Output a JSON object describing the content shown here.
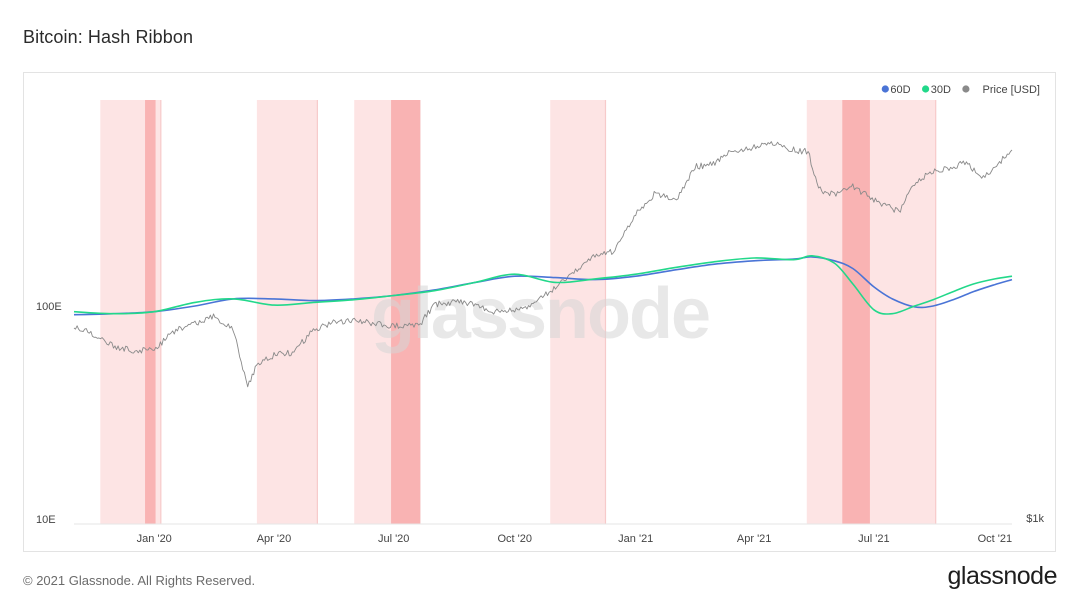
{
  "header": {
    "title": "Bitcoin: Hash Ribbon"
  },
  "footer": {
    "copyright": "© 2021 Glassnode. All Rights Reserved.",
    "brand": "glassnode"
  },
  "watermark": "glassnode",
  "colors": {
    "sixty_day": "#4a74d6",
    "thirty_day": "#22d88a",
    "price": "#8a8a8a",
    "capitulation_band": "#fde4e4",
    "capitulation_peak": "#f9b3b3"
  },
  "chart_data": {
    "type": "line",
    "title": "Bitcoin: Hash Ribbon",
    "x_range": [
      "2019-11-01",
      "2021-10-14"
    ],
    "x_ticks": [
      {
        "date": "2020-01-01",
        "label": "Jan '20"
      },
      {
        "date": "2020-04-01",
        "label": "Apr '20"
      },
      {
        "date": "2020-07-01",
        "label": "Jul '20"
      },
      {
        "date": "2020-10-01",
        "label": "Oct '20"
      },
      {
        "date": "2021-01-01",
        "label": "Jan '21"
      },
      {
        "date": "2021-04-01",
        "label": "Apr '21"
      },
      {
        "date": "2021-07-01",
        "label": "Jul '21"
      },
      {
        "date": "2021-10-01",
        "label": "Oct '21"
      }
    ],
    "y_left": {
      "scale": "log",
      "range": [
        "10E",
        "300E"
      ],
      "ticks": [
        {
          "value": 100,
          "label": "100E"
        },
        {
          "value": 10,
          "label": "10E"
        }
      ]
    },
    "y_right": {
      "scale": "log",
      "ticks": [
        {
          "value": 1000,
          "label": "$1k"
        }
      ]
    },
    "legend": {
      "position": "top-right",
      "entries": [
        {
          "name": "60D",
          "color": "#4a74d6"
        },
        {
          "name": "30D",
          "color": "#22d88a"
        },
        {
          "name": "Price [USD]",
          "color": "#8a8a8a"
        }
      ]
    },
    "capitulation_bands": [
      {
        "start": "2019-11-21",
        "end": "2020-01-06",
        "peak_start": "2019-12-25",
        "peak_end": "2020-01-02"
      },
      {
        "start": "2020-03-19",
        "end": "2020-05-04"
      },
      {
        "start": "2020-06-01",
        "end": "2020-07-21",
        "peak_start": "2020-06-29",
        "peak_end": "2020-07-21"
      },
      {
        "start": "2020-10-28",
        "end": "2020-12-09"
      },
      {
        "start": "2021-05-11",
        "end": "2021-08-17",
        "peak_start": "2021-06-07",
        "peak_end": "2021-06-28"
      }
    ],
    "series": [
      {
        "name": "60D",
        "axis": "left",
        "points": [
          [
            "2019-11-01",
            91
          ],
          [
            "2019-12-01",
            92
          ],
          [
            "2020-01-01",
            94
          ],
          [
            "2020-02-01",
            100
          ],
          [
            "2020-03-01",
            108
          ],
          [
            "2020-04-01",
            108
          ],
          [
            "2020-05-01",
            106
          ],
          [
            "2020-06-01",
            108
          ],
          [
            "2020-07-01",
            112
          ],
          [
            "2020-08-01",
            119
          ],
          [
            "2020-09-01",
            129
          ],
          [
            "2020-10-01",
            138
          ],
          [
            "2020-11-01",
            136
          ],
          [
            "2020-12-01",
            133
          ],
          [
            "2021-01-01",
            138
          ],
          [
            "2021-02-01",
            148
          ],
          [
            "2021-03-01",
            157
          ],
          [
            "2021-04-01",
            163
          ],
          [
            "2021-05-01",
            166
          ],
          [
            "2021-05-15",
            170
          ],
          [
            "2021-06-01",
            163
          ],
          [
            "2021-06-15",
            150
          ],
          [
            "2021-07-01",
            123
          ],
          [
            "2021-07-15",
            108
          ],
          [
            "2021-08-01",
            99
          ],
          [
            "2021-08-15",
            100
          ],
          [
            "2021-09-01",
            108
          ],
          [
            "2021-09-15",
            117
          ],
          [
            "2021-10-01",
            126
          ],
          [
            "2021-10-14",
            133
          ]
        ]
      },
      {
        "name": "30D",
        "axis": "left",
        "points": [
          [
            "2019-11-01",
            94
          ],
          [
            "2019-12-01",
            92
          ],
          [
            "2020-01-01",
            94
          ],
          [
            "2020-02-01",
            104
          ],
          [
            "2020-03-01",
            108
          ],
          [
            "2020-04-01",
            101
          ],
          [
            "2020-05-01",
            104
          ],
          [
            "2020-06-01",
            107
          ],
          [
            "2020-07-01",
            112
          ],
          [
            "2020-08-01",
            118
          ],
          [
            "2020-09-01",
            129
          ],
          [
            "2020-10-01",
            141
          ],
          [
            "2020-11-01",
            129
          ],
          [
            "2020-12-01",
            134
          ],
          [
            "2021-01-01",
            141
          ],
          [
            "2021-02-01",
            152
          ],
          [
            "2021-03-01",
            161
          ],
          [
            "2021-04-01",
            168
          ],
          [
            "2021-05-01",
            165
          ],
          [
            "2021-05-15",
            172
          ],
          [
            "2021-06-01",
            159
          ],
          [
            "2021-06-15",
            127
          ],
          [
            "2021-07-01",
            96
          ],
          [
            "2021-07-15",
            92
          ],
          [
            "2021-08-01",
            100
          ],
          [
            "2021-08-15",
            107
          ],
          [
            "2021-09-01",
            118
          ],
          [
            "2021-09-15",
            127
          ],
          [
            "2021-10-01",
            134
          ],
          [
            "2021-10-14",
            138
          ]
        ]
      },
      {
        "name": "Price [USD]",
        "axis": "right",
        "points": [
          [
            "2019-11-01",
            9200
          ],
          [
            "2019-11-15",
            8500
          ],
          [
            "2019-12-01",
            7500
          ],
          [
            "2019-12-15",
            7100
          ],
          [
            "2020-01-01",
            7200
          ],
          [
            "2020-01-15",
            8700
          ],
          [
            "2020-02-01",
            9400
          ],
          [
            "2020-02-15",
            10200
          ],
          [
            "2020-03-01",
            8800
          ],
          [
            "2020-03-12",
            5000
          ],
          [
            "2020-03-20",
            6300
          ],
          [
            "2020-04-01",
            6800
          ],
          [
            "2020-04-15",
            7000
          ],
          [
            "2020-05-01",
            8800
          ],
          [
            "2020-05-15",
            9500
          ],
          [
            "2020-06-01",
            9700
          ],
          [
            "2020-06-15",
            9500
          ],
          [
            "2020-07-01",
            9200
          ],
          [
            "2020-07-20",
            9200
          ],
          [
            "2020-08-01",
            11500
          ],
          [
            "2020-08-15",
            11800
          ],
          [
            "2020-09-01",
            11600
          ],
          [
            "2020-09-15",
            10700
          ],
          [
            "2020-10-01",
            10800
          ],
          [
            "2020-10-15",
            11500
          ],
          [
            "2020-11-01",
            13700
          ],
          [
            "2020-11-15",
            16000
          ],
          [
            "2020-12-01",
            19000
          ],
          [
            "2020-12-15",
            20000
          ],
          [
            "2021-01-01",
            29500
          ],
          [
            "2021-01-15",
            36000
          ],
          [
            "2021-02-01",
            34000
          ],
          [
            "2021-02-15",
            48000
          ],
          [
            "2021-03-01",
            49000
          ],
          [
            "2021-03-15",
            57000
          ],
          [
            "2021-04-01",
            58500
          ],
          [
            "2021-04-14",
            62000
          ],
          [
            "2021-05-01",
            57000
          ],
          [
            "2021-05-12",
            56000
          ],
          [
            "2021-05-20",
            38000
          ],
          [
            "2021-06-01",
            36000
          ],
          [
            "2021-06-15",
            39000
          ],
          [
            "2021-07-01",
            34000
          ],
          [
            "2021-07-20",
            30000
          ],
          [
            "2021-08-01",
            40000
          ],
          [
            "2021-08-15",
            46000
          ],
          [
            "2021-09-01",
            48000
          ],
          [
            "2021-09-07",
            51000
          ],
          [
            "2021-09-21",
            42500
          ],
          [
            "2021-10-01",
            48000
          ],
          [
            "2021-10-14",
            57000
          ]
        ]
      }
    ]
  }
}
